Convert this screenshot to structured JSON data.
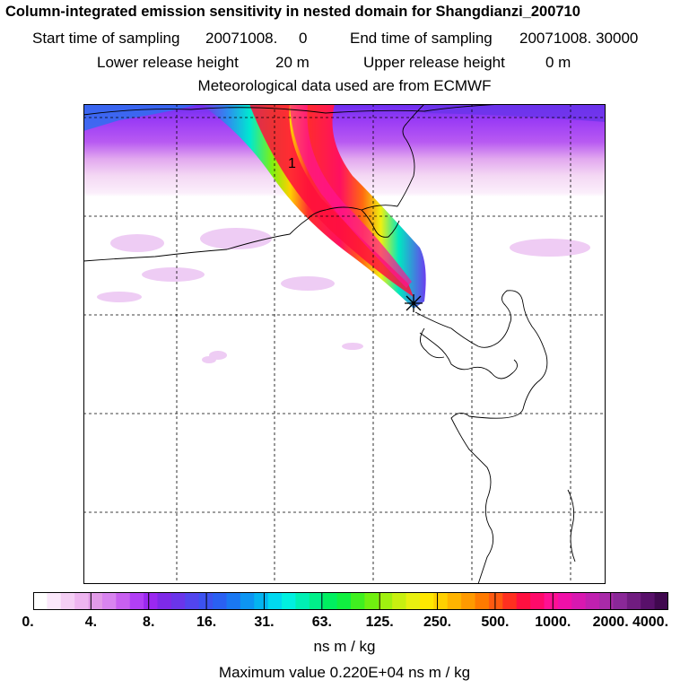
{
  "title": {
    "line1": "Column-integrated emission sensitivity in nested domain for Shangdianzi_200710",
    "start_label": "Start time of sampling",
    "start_value": "20071008.     0",
    "end_label": "End time of sampling",
    "end_value": "20071008. 30000",
    "lower_label": "Lower release height",
    "lower_value": "20 m",
    "upper_label": "Upper release height",
    "upper_value": "0 m",
    "line4": "Meteorological data used are from ECMWF"
  },
  "map": {
    "plume_label": "1",
    "colors": {
      "very_low": "#f6dcf6",
      "low": "#e8b7f0",
      "mid_low": "#c97af0",
      "mid": "#a33ff5",
      "high_violet": "#8a2be2",
      "blue": "#2f6ff0",
      "plume_red": "#ff0f3c",
      "plume_magenta": "#ff1493"
    }
  },
  "colorbar": {
    "colors": [
      "#ffffff",
      "#fbe8fb",
      "#f5cff5",
      "#eeb5f0",
      "#e29be8",
      "#d884ef",
      "#c860f0",
      "#b23ff5",
      "#9a28f0",
      "#7e2ae8",
      "#6a35ea",
      "#5245ee",
      "#3c52f0",
      "#2a60f2",
      "#1a78f2",
      "#0d95f2",
      "#04b4f0",
      "#00d8f0",
      "#00f0e0",
      "#00f0b4",
      "#00f08a",
      "#00f060",
      "#10f040",
      "#40f020",
      "#70f010",
      "#a0f010",
      "#c8f010",
      "#e8f010",
      "#ffe800",
      "#ffd000",
      "#ffb400",
      "#ff9a00",
      "#ff7a00",
      "#ff5a10",
      "#ff3020",
      "#ff1040",
      "#ff0a6a",
      "#ff1093",
      "#f010a8",
      "#d818b0",
      "#c020b0",
      "#a82aa8",
      "#8a2898",
      "#701c80",
      "#58106a",
      "#40084f"
    ],
    "tick_labels": [
      "0.",
      "4.",
      "8.",
      "16.",
      "31.",
      "63.",
      "125.",
      "250.",
      "500.",
      "1000.",
      "2000.",
      "4000."
    ],
    "units": "ns m / kg"
  },
  "max_value_text": "Maximum value  0.220E+04 ns m / kg"
}
